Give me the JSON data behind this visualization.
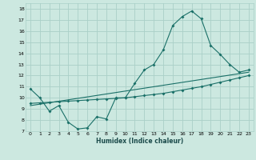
{
  "xlabel": "Humidex (Indice chaleur)",
  "bg_color": "#cce8e0",
  "grid_color": "#aad0c8",
  "line_color": "#1a7068",
  "xlim": [
    -0.5,
    23.5
  ],
  "ylim": [
    7,
    18.5
  ],
  "xticks": [
    0,
    1,
    2,
    3,
    4,
    5,
    6,
    7,
    8,
    9,
    10,
    11,
    12,
    13,
    14,
    15,
    16,
    17,
    18,
    19,
    20,
    21,
    22,
    23
  ],
  "yticks": [
    7,
    8,
    9,
    10,
    11,
    12,
    13,
    14,
    15,
    16,
    17,
    18
  ],
  "series1_x": [
    0,
    1,
    2,
    3,
    4,
    5,
    6,
    7,
    8,
    9,
    10,
    11,
    12,
    13,
    14,
    15,
    16,
    17,
    18,
    19,
    20,
    21,
    22,
    23
  ],
  "series1_y": [
    10.8,
    10.0,
    8.8,
    9.3,
    7.8,
    7.2,
    7.3,
    8.3,
    8.1,
    10.0,
    10.0,
    11.3,
    12.5,
    13.0,
    14.3,
    16.5,
    17.3,
    17.8,
    17.1,
    14.7,
    13.9,
    13.0,
    12.3,
    12.5
  ],
  "series2_x": [
    0,
    1,
    2,
    3,
    4,
    5,
    6,
    7,
    8,
    9,
    10,
    11,
    12,
    13,
    14,
    15,
    16,
    17,
    18,
    19,
    20,
    21,
    22,
    23
  ],
  "series2_y": [
    9.5,
    9.55,
    9.6,
    9.65,
    9.7,
    9.75,
    9.8,
    9.85,
    9.9,
    9.95,
    10.0,
    10.1,
    10.2,
    10.3,
    10.4,
    10.55,
    10.7,
    10.85,
    11.0,
    11.2,
    11.4,
    11.6,
    11.8,
    12.0
  ],
  "series3_x": [
    0,
    23
  ],
  "series3_y": [
    9.3,
    12.3
  ]
}
